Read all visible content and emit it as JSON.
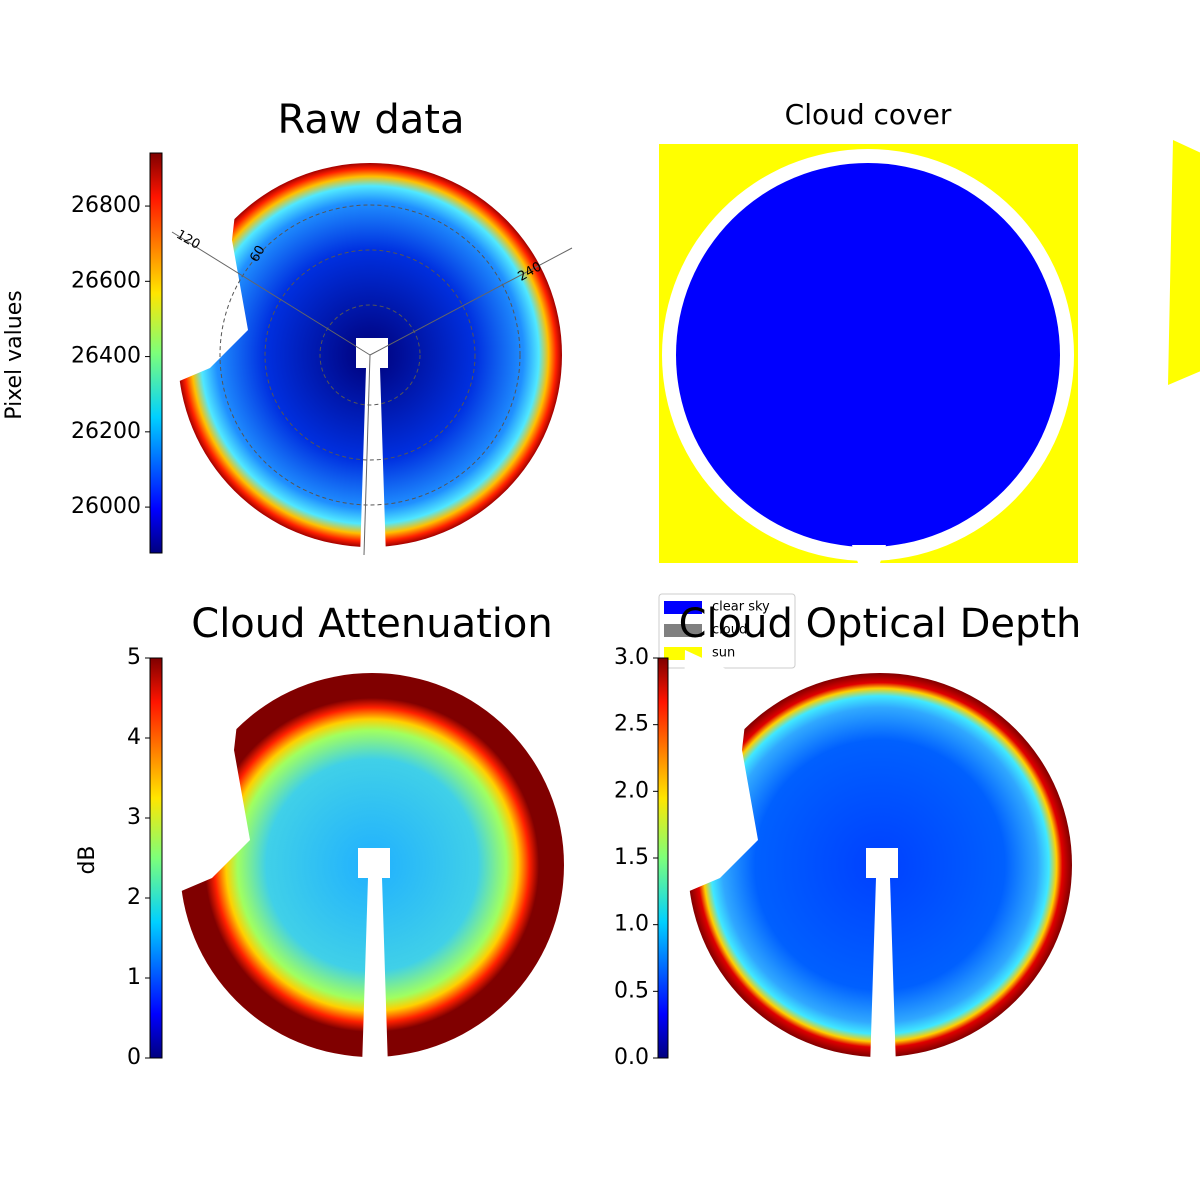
{
  "chart_data": [
    {
      "type": "heatmap",
      "title": "Raw data",
      "colorbar_label": "Pixel values",
      "colormap": "jet",
      "ylim": [
        25878,
        26941
      ],
      "yticks": [
        26000,
        26200,
        26400,
        26600,
        26800
      ],
      "polar_labels": [
        "120",
        "60",
        "240"
      ]
    },
    {
      "type": "classification",
      "title": "Cloud cover",
      "series": [
        {
          "name": "clear sky",
          "color": "#0000ff"
        },
        {
          "name": "cloud",
          "color": "#808080"
        },
        {
          "name": "sun",
          "color": "#ffff00"
        }
      ]
    },
    {
      "type": "heatmap",
      "title": "Cloud Attenuation",
      "colorbar_label": "dB",
      "colormap": "jet",
      "ylim": [
        0,
        5
      ],
      "yticks": [
        0,
        1,
        2,
        3,
        4,
        5
      ]
    },
    {
      "type": "heatmap",
      "title": "Cloud Optical Depth",
      "colormap": "jet",
      "ylim": [
        0,
        3
      ],
      "yticks": [
        {
          "value": 0,
          "label": "0.0"
        },
        {
          "value": 0.5,
          "label": "0.5"
        },
        {
          "value": 1,
          "label": "1.0"
        },
        {
          "value": 1.5,
          "label": "1.5"
        },
        {
          "value": 2,
          "label": "2.0"
        },
        {
          "value": 2.5,
          "label": "2.5"
        },
        {
          "value": 3,
          "label": "3.0"
        }
      ]
    }
  ]
}
